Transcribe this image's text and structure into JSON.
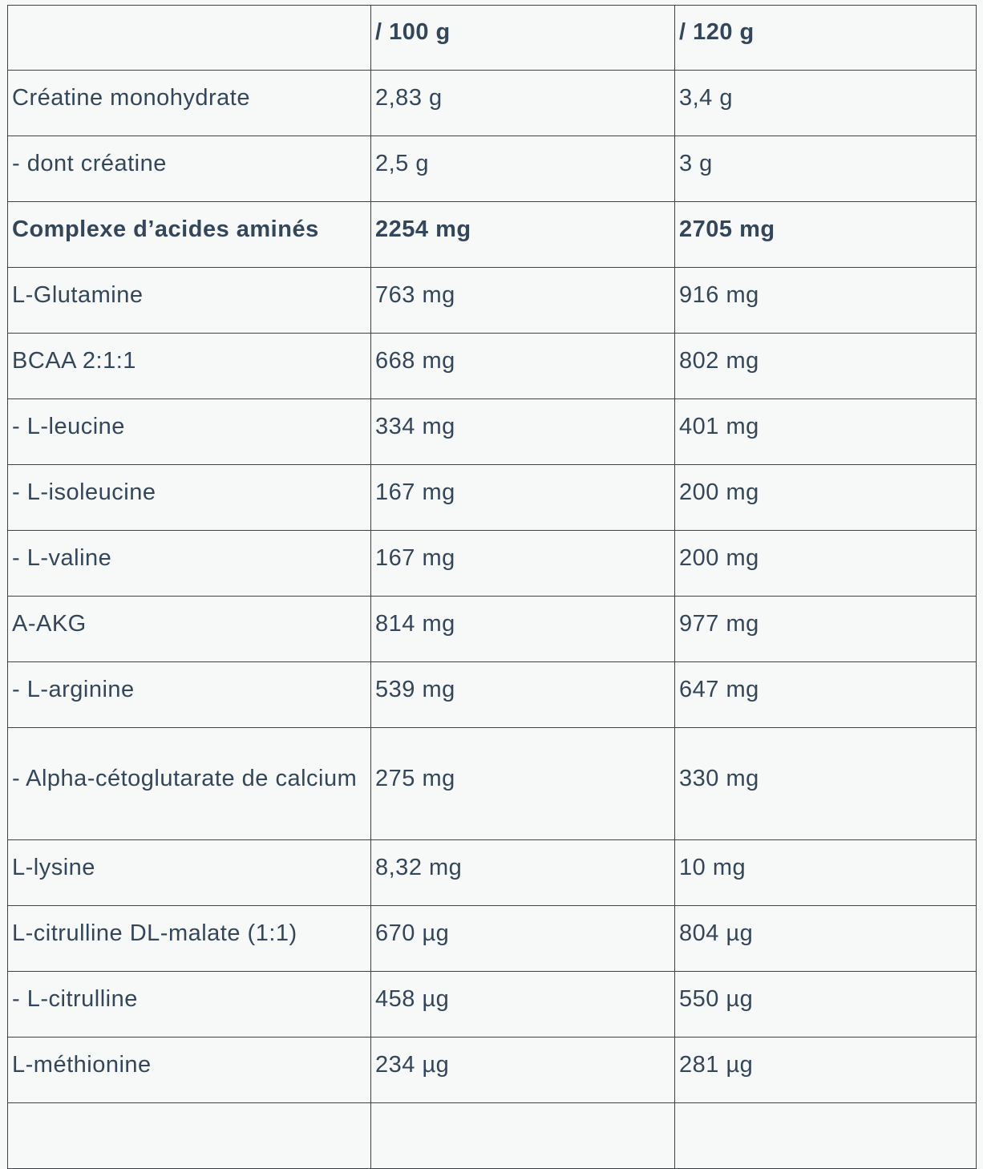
{
  "colors": {
    "background": "#f7f8f8",
    "text": "#33465a",
    "border": "#3f4245"
  },
  "table": {
    "columns": [
      {
        "label": ""
      },
      {
        "label": "/ 100 g"
      },
      {
        "label": "/ 120 g"
      }
    ],
    "rows": [
      {
        "label": "Créatine monohydrate",
        "per_100g": "2,83 g",
        "per_120g": "3,4 g",
        "bold": false,
        "tall": false,
        "clipped": false
      },
      {
        "label": "- dont créatine",
        "per_100g": "2,5 g",
        "per_120g": "3 g",
        "bold": false,
        "tall": false,
        "clipped": false
      },
      {
        "label": "Complexe d’acides aminés",
        "per_100g": "2254 mg",
        "per_120g": "2705 mg",
        "bold": true,
        "tall": false,
        "clipped": false
      },
      {
        "label": "L-Glutamine",
        "per_100g": "763 mg",
        "per_120g": "916 mg",
        "bold": false,
        "tall": false,
        "clipped": false
      },
      {
        "label": "BCAA 2:1:1",
        "per_100g": "668 mg",
        "per_120g": "802 mg",
        "bold": false,
        "tall": false,
        "clipped": false
      },
      {
        "label": "- L-leucine",
        "per_100g": "334 mg",
        "per_120g": "401 mg",
        "bold": false,
        "tall": false,
        "clipped": false
      },
      {
        "label": "- L-isoleucine",
        "per_100g": "167 mg",
        "per_120g": "200 mg",
        "bold": false,
        "tall": false,
        "clipped": false
      },
      {
        "label": "- L-valine",
        "per_100g": "167 mg",
        "per_120g": "200 mg",
        "bold": false,
        "tall": false,
        "clipped": false
      },
      {
        "label": "A-AKG",
        "per_100g": "814 mg",
        "per_120g": "977 mg",
        "bold": false,
        "tall": false,
        "clipped": false
      },
      {
        "label": "- L-arginine",
        "per_100g": "539 mg",
        "per_120g": "647 mg",
        "bold": false,
        "tall": false,
        "clipped": false
      },
      {
        "label": "- Alpha-cétoglutarate de calcium",
        "per_100g": "275 mg",
        "per_120g": "330 mg",
        "bold": false,
        "tall": true,
        "clipped": false
      },
      {
        "label": "L-lysine",
        "per_100g": "8,32 mg",
        "per_120g": "10 mg",
        "bold": false,
        "tall": false,
        "clipped": false
      },
      {
        "label": "L-citrulline DL-malate (1:1)",
        "per_100g": "670 µg",
        "per_120g": "804 µg",
        "bold": false,
        "tall": false,
        "clipped": false
      },
      {
        "label": "- L-citrulline",
        "per_100g": "458 µg",
        "per_120g": "550 µg",
        "bold": false,
        "tall": false,
        "clipped": false
      },
      {
        "label": "L-méthionine",
        "per_100g": "234 µg",
        "per_120g": "281 µg",
        "bold": false,
        "tall": false,
        "clipped": false
      },
      {
        "label": "",
        "per_100g": "",
        "per_120g": "",
        "bold": false,
        "tall": false,
        "clipped": true
      }
    ]
  }
}
